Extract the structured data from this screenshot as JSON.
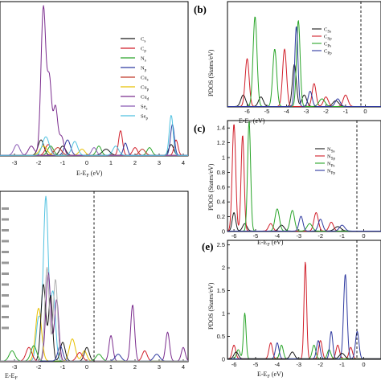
{
  "chart_data": [
    {
      "id": "a",
      "type": "line",
      "panel_label": "",
      "xlabel": "E-Eₓ (eV)",
      "xlabel_text": "E-E",
      "xlabel_sub": "F",
      "xlabel_unit": " (eV)",
      "ylabel": "",
      "xlim": [
        -3.6,
        4.2
      ],
      "ylim": [
        0,
        10
      ],
      "xticks": [
        -3,
        -2,
        -1,
        0,
        1,
        2,
        3,
        4
      ],
      "legend_position": "right",
      "series": [
        {
          "name": "C_s",
          "color": "#1a1a1a",
          "peaks": [
            [
              -1.9,
              1.0,
              0.12
            ],
            [
              -1.0,
              0.6,
              0.12
            ],
            [
              0.8,
              0.4,
              0.15
            ],
            [
              3.5,
              0.7,
              0.1
            ]
          ]
        },
        {
          "name": "C_p",
          "color": "#d11f2a",
          "peaks": [
            [
              -1.6,
              0.7,
              0.12
            ],
            [
              1.4,
              1.6,
              0.08
            ],
            [
              2.0,
              0.5,
              0.1
            ],
            [
              3.7,
              1.0,
              0.08
            ]
          ]
        },
        {
          "name": "N_s",
          "color": "#2aa52a",
          "peaks": [
            [
              -1.5,
              0.6,
              0.12
            ],
            [
              0.5,
              0.6,
              0.1
            ],
            [
              2.6,
              0.5,
              0.1
            ]
          ]
        },
        {
          "name": "N_p",
          "color": "#2f3aa0",
          "peaks": [
            [
              -0.8,
              1.0,
              0.12
            ],
            [
              1.6,
              0.8,
              0.08
            ],
            [
              3.55,
              2.0,
              0.08
            ]
          ]
        },
        {
          "name": "Cu_s",
          "color": "#c0392b",
          "peaks": [
            [
              -1.2,
              0.5,
              0.15
            ],
            [
              2.3,
              0.4,
              0.12
            ]
          ]
        },
        {
          "name": "Cu_p",
          "color": "#e8c000",
          "peaks": [
            [
              -1.8,
              0.6,
              0.15
            ],
            [
              -0.2,
              0.4,
              0.12
            ]
          ]
        },
        {
          "name": "Cu_d",
          "color": "#7b2d8e",
          "peaks": [
            [
              -2.3,
              0.6,
              0.12
            ],
            [
              -1.8,
              9.6,
              0.1
            ],
            [
              -1.55,
              4.8,
              0.09
            ],
            [
              -1.3,
              3.1,
              0.09
            ],
            [
              -1.05,
              1.2,
              0.1
            ]
          ]
        },
        {
          "name": "Se_s",
          "color": "#8a5bb5",
          "peaks": [
            [
              -2.9,
              0.7,
              0.12
            ],
            [
              0.3,
              0.5,
              0.1
            ]
          ]
        },
        {
          "name": "Se_p",
          "color": "#4fc1e0",
          "peaks": [
            [
              -1.7,
              1.2,
              0.14
            ],
            [
              -0.5,
              0.9,
              0.12
            ],
            [
              1.2,
              0.6,
              0.12
            ],
            [
              3.5,
              2.6,
              0.08
            ]
          ]
        }
      ]
    },
    {
      "id": "b",
      "type": "line",
      "panel_label": "(b)",
      "xlabel": "E-Eₓ (eV)",
      "xlabel_text": "E-E",
      "xlabel_sub": "F",
      "xlabel_unit": " (eV)",
      "ylabel": "PDOS (States/eV)",
      "xlim": [
        -7,
        0.8
      ],
      "ylim": [
        0,
        0.55
      ],
      "xticks": [
        -6,
        -5,
        -4,
        -3,
        -2,
        -1,
        0
      ],
      "legend_position": "top-right",
      "series": [
        {
          "name": "C_Ss",
          "color": "#1a1a1a",
          "peaks": [
            [
              -6.2,
              0.06,
              0.12
            ],
            [
              -5.3,
              0.05,
              0.12
            ],
            [
              -3.6,
              0.22,
              0.1
            ],
            [
              -3.1,
              0.06,
              0.12
            ],
            [
              -1.5,
              0.03,
              0.15
            ]
          ]
        },
        {
          "name": "C_Sp",
          "color": "#d11f2a",
          "peaks": [
            [
              -6.0,
              0.25,
              0.1
            ],
            [
              -4.1,
              0.3,
              0.1
            ],
            [
              -2.6,
              0.12,
              0.1
            ],
            [
              -2.0,
              0.05,
              0.12
            ],
            [
              -1.0,
              0.06,
              0.12
            ]
          ]
        },
        {
          "name": "C_Ps",
          "color": "#2aa52a",
          "peaks": [
            [
              -5.6,
              0.47,
              0.1
            ],
            [
              -4.6,
              0.3,
              0.1
            ],
            [
              -3.4,
              0.45,
              0.09
            ],
            [
              -2.2,
              0.04,
              0.15
            ]
          ]
        },
        {
          "name": "C_Pp",
          "color": "#2f3aa0",
          "peaks": [
            [
              -3.5,
              0.42,
              0.08
            ],
            [
              -2.8,
              0.08,
              0.1
            ],
            [
              -1.4,
              0.04,
              0.12
            ]
          ]
        }
      ]
    },
    {
      "id": "c",
      "type": "line",
      "panel_label": "(c)",
      "xlabel": "E-Eₓ (eV)",
      "xlabel_text": "E-E",
      "xlabel_sub": "F",
      "xlabel_unit": " (eV)",
      "ylabel": "PDOS (States/eV)",
      "xlim": [
        -6.3,
        0.8
      ],
      "ylim": [
        0,
        1.5
      ],
      "xticks": [
        -6,
        -5,
        -4,
        -3,
        -2,
        -1,
        0
      ],
      "yticks": [
        0,
        0.2,
        0.4,
        0.6,
        0.8,
        1,
        1.2,
        1.4
      ],
      "legend_position": "top-right",
      "series": [
        {
          "name": "N_Ss",
          "color": "#1a1a1a",
          "peaks": [
            [
              -6.0,
              0.25,
              0.08
            ],
            [
              -5.5,
              0.1,
              0.1
            ],
            [
              -3.8,
              0.08,
              0.12
            ],
            [
              -1.2,
              0.06,
              0.15
            ]
          ]
        },
        {
          "name": "N_Sp",
          "color": "#d11f2a",
          "peaks": [
            [
              -6.0,
              1.45,
              0.08
            ],
            [
              -5.6,
              1.3,
              0.07
            ],
            [
              -4.3,
              0.1,
              0.1
            ],
            [
              -2.2,
              0.25,
              0.1
            ],
            [
              -1.5,
              0.12,
              0.1
            ]
          ]
        },
        {
          "name": "N_Ps",
          "color": "#2aa52a",
          "peaks": [
            [
              -5.3,
              1.48,
              0.07
            ],
            [
              -4.0,
              0.3,
              0.1
            ],
            [
              -3.3,
              0.28,
              0.1
            ],
            [
              -2.5,
              0.1,
              0.12
            ]
          ]
        },
        {
          "name": "N_Pp",
          "color": "#2f3aa0",
          "peaks": [
            [
              -2.9,
              0.2,
              0.09
            ],
            [
              -2.0,
              0.16,
              0.1
            ],
            [
              -1.0,
              0.08,
              0.12
            ]
          ]
        }
      ]
    },
    {
      "id": "d",
      "type": "line",
      "panel_label": "",
      "xlabel": "E-Eₓ (eV)",
      "xlabel_text": "E-E",
      "xlabel_sub": "F",
      "xlabel_unit": "",
      "ylabel": "",
      "xlim": [
        -3.6,
        4.2
      ],
      "ylim": [
        0,
        10
      ],
      "xticks": [
        -3,
        -2,
        -1,
        0,
        1,
        2,
        3,
        4
      ],
      "legend_position": "left",
      "series": [
        {
          "name": "",
          "color": "#4fc1e0",
          "peaks": [
            [
              -1.7,
              9.6,
              0.1
            ],
            [
              -1.4,
              4.0,
              0.1
            ],
            [
              -2.0,
              2.5,
              0.1
            ]
          ]
        },
        {
          "name": "",
          "color": "#7b2d8e",
          "peaks": [
            [
              -1.6,
              5.2,
              0.1
            ],
            [
              -1.25,
              3.6,
              0.09
            ],
            [
              1.0,
              1.5,
              0.08
            ],
            [
              1.9,
              3.3,
              0.08
            ],
            [
              3.35,
              1.7,
              0.08
            ],
            [
              4.0,
              0.8,
              0.08
            ]
          ]
        },
        {
          "name": "",
          "color": "#e8c000",
          "peaks": [
            [
              -2.0,
              3.1,
              0.12
            ],
            [
              -0.6,
              1.3,
              0.12
            ],
            [
              -0.1,
              0.6,
              0.1
            ]
          ]
        },
        {
          "name": "",
          "color": "#1a1a1a",
          "peaks": [
            [
              -1.8,
              4.5,
              0.1
            ],
            [
              -1.5,
              3.8,
              0.08
            ],
            [
              -1.0,
              1.1,
              0.1
            ],
            [
              0.0,
              0.8,
              0.1
            ]
          ]
        },
        {
          "name": "",
          "color": "#d11f2a",
          "peaks": [
            [
              -2.4,
              0.8,
              0.12
            ],
            [
              -0.3,
              0.5,
              0.12
            ],
            [
              2.4,
              0.6,
              0.1
            ]
          ]
        },
        {
          "name": "",
          "color": "#2aa52a",
          "peaks": [
            [
              -3.1,
              0.6,
              0.12
            ],
            [
              -2.2,
              0.9,
              0.12
            ],
            [
              0.5,
              0.4,
              0.12
            ]
          ]
        },
        {
          "name": "",
          "color": "#2f3aa0",
          "peaks": [
            [
              -1.1,
              0.9,
              0.1
            ],
            [
              1.3,
              0.4,
              0.12
            ],
            [
              2.9,
              0.4,
              0.12
            ]
          ]
        },
        {
          "name": "",
          "color": "#b0b0b0",
          "peaks": [
            [
              -1.65,
              5.5,
              0.09
            ],
            [
              -1.3,
              4.8,
              0.09
            ]
          ]
        }
      ]
    },
    {
      "id": "e",
      "type": "line",
      "panel_label": "(e)",
      "xlabel": "E-Eₓ (eV)",
      "xlabel_text": "E-E",
      "xlabel_sub": "F",
      "xlabel_unit": " (eV)",
      "ylabel": "PDOS (States/eV)",
      "xlim": [
        -6.3,
        0.8
      ],
      "ylim": [
        0,
        2.6
      ],
      "xticks": [
        -6,
        -5,
        -4,
        -3,
        -2,
        -1,
        0
      ],
      "yticks": [
        0,
        0.5,
        1,
        1.5,
        2,
        2.5
      ],
      "legend_position": "none",
      "series": [
        {
          "name": "",
          "color": "#d11f2a",
          "peaks": [
            [
              -6.0,
              0.3,
              0.08
            ],
            [
              -4.3,
              0.35,
              0.08
            ],
            [
              -2.7,
              2.12,
              0.06
            ],
            [
              -2.0,
              0.4,
              0.08
            ],
            [
              -1.2,
              0.3,
              0.08
            ],
            [
              -0.6,
              0.25,
              0.08
            ]
          ]
        },
        {
          "name": "",
          "color": "#2aa52a",
          "peaks": [
            [
              -5.8,
              0.2,
              0.08
            ],
            [
              -5.5,
              1.0,
              0.06
            ],
            [
              -3.8,
              0.3,
              0.08
            ],
            [
              -2.3,
              0.3,
              0.08
            ],
            [
              -1.6,
              0.2,
              0.08
            ]
          ]
        },
        {
          "name": "",
          "color": "#2f3aa0",
          "peaks": [
            [
              -4.0,
              0.35,
              0.08
            ],
            [
              -2.1,
              0.4,
              0.08
            ],
            [
              -1.5,
              0.6,
              0.07
            ],
            [
              -0.85,
              1.85,
              0.08
            ],
            [
              -0.3,
              0.6,
              0.08
            ]
          ]
        },
        {
          "name": "",
          "color": "#1a1a1a",
          "peaks": [
            [
              -5.9,
              0.15,
              0.1
            ],
            [
              -3.3,
              0.15,
              0.1
            ],
            [
              -1.0,
              0.12,
              0.12
            ]
          ]
        }
      ]
    }
  ]
}
